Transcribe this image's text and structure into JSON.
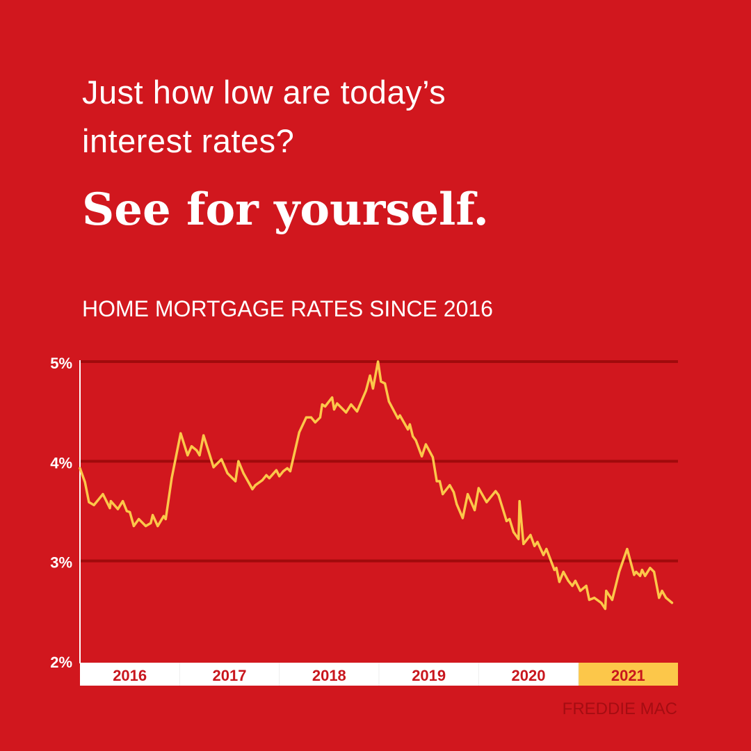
{
  "headline": {
    "line1": "Just how low are today’s",
    "line2": "interest rates?",
    "tagline": "See for yourself."
  },
  "source": "FREDDIE MAC",
  "colors": {
    "background": "#d1171e",
    "line": "#fcc74a",
    "grid": "#a00a0c",
    "highlight_year": "#fcc74a"
  },
  "chart_data": {
    "type": "line",
    "title": "HOME MORTGAGE RATES SINCE 2016",
    "xlim": [
      2016,
      2022
    ],
    "ylim": [
      2,
      5
    ],
    "y_ticks": [
      {
        "value": 5,
        "label": "5%"
      },
      {
        "value": 4,
        "label": "4%"
      },
      {
        "value": 3,
        "label": "3%"
      },
      {
        "value": 2,
        "label": "2%"
      }
    ],
    "x_categories": [
      "2016",
      "2017",
      "2018",
      "2019",
      "2020",
      "2021"
    ],
    "highlighted_category": "2021",
    "grid": true,
    "x": [
      2016.0,
      2016.05,
      2016.09,
      2016.14,
      2016.23,
      2016.3,
      2016.31,
      2016.38,
      2016.43,
      2016.47,
      2016.5,
      2016.54,
      2016.59,
      2016.66,
      2016.71,
      2016.73,
      2016.78,
      2016.84,
      2016.86,
      2016.92,
      2017.01,
      2017.08,
      2017.12,
      2017.17,
      2017.2,
      2017.24,
      2017.34,
      2017.42,
      2017.48,
      2017.56,
      2017.59,
      2017.64,
      2017.73,
      2017.76,
      2017.83,
      2017.87,
      2017.9,
      2017.97,
      2018.0,
      2018.04,
      2018.08,
      2018.11,
      2018.2,
      2018.27,
      2018.32,
      2018.36,
      2018.41,
      2018.43,
      2018.46,
      2018.53,
      2018.55,
      2018.58,
      2018.67,
      2018.72,
      2018.78,
      2018.87,
      2018.91,
      2018.94,
      2018.99,
      2019.02,
      2019.06,
      2019.1,
      2019.19,
      2019.21,
      2019.29,
      2019.31,
      2019.34,
      2019.37,
      2019.43,
      2019.47,
      2019.54,
      2019.58,
      2019.61,
      2019.64,
      2019.71,
      2019.75,
      2019.78,
      2019.84,
      2019.89,
      2019.96,
      2020.0,
      2020.08,
      2020.17,
      2020.2,
      2020.28,
      2020.31,
      2020.35,
      2020.4,
      2020.41,
      2020.45,
      2020.52,
      2020.56,
      2020.59,
      2020.65,
      2020.68,
      2020.76,
      2020.78,
      2020.81,
      2020.85,
      2020.9,
      2020.94,
      2020.97,
      2021.02,
      2021.08,
      2021.11,
      2021.16,
      2021.23,
      2021.27,
      2021.28,
      2021.34,
      2021.41,
      2021.49,
      2021.56,
      2021.58,
      2021.62,
      2021.64,
      2021.67,
      2021.72,
      2021.76,
      2021.81,
      2021.84,
      2021.88,
      2021.94
    ],
    "y": [
      3.93,
      3.79,
      3.59,
      3.56,
      3.67,
      3.53,
      3.6,
      3.52,
      3.6,
      3.5,
      3.49,
      3.35,
      3.42,
      3.35,
      3.38,
      3.46,
      3.35,
      3.45,
      3.42,
      3.83,
      4.28,
      4.06,
      4.15,
      4.11,
      4.06,
      4.26,
      3.94,
      4.02,
      3.88,
      3.8,
      4.0,
      3.88,
      3.72,
      3.76,
      3.81,
      3.86,
      3.83,
      3.91,
      3.85,
      3.9,
      3.93,
      3.9,
      4.29,
      4.44,
      4.44,
      4.39,
      4.44,
      4.57,
      4.55,
      4.64,
      4.52,
      4.58,
      4.49,
      4.57,
      4.5,
      4.71,
      4.86,
      4.73,
      5.0,
      4.8,
      4.78,
      4.6,
      4.43,
      4.46,
      4.32,
      4.37,
      4.25,
      4.21,
      4.05,
      4.17,
      4.04,
      3.8,
      3.8,
      3.67,
      3.76,
      3.69,
      3.57,
      3.43,
      3.67,
      3.51,
      3.73,
      3.59,
      3.7,
      3.66,
      3.4,
      3.42,
      3.29,
      3.22,
      3.6,
      3.17,
      3.26,
      3.15,
      3.19,
      3.06,
      3.12,
      2.91,
      2.93,
      2.79,
      2.89,
      2.8,
      2.75,
      2.8,
      2.7,
      2.75,
      2.61,
      2.63,
      2.58,
      2.52,
      2.7,
      2.61,
      2.89,
      3.12,
      2.86,
      2.89,
      2.85,
      2.91,
      2.85,
      2.93,
      2.89,
      2.63,
      2.7,
      2.63,
      2.58
    ]
  }
}
